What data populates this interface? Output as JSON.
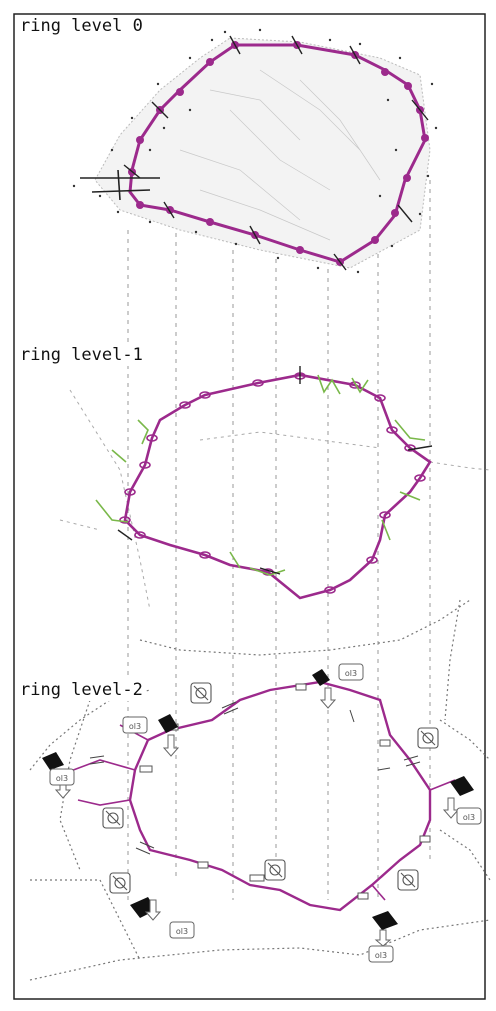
{
  "labels": {
    "level0": "ring level 0",
    "level1": "ring level-1",
    "level2": "ring level-2"
  },
  "tag_text": "ol3",
  "colors": {
    "ring": "#9c2a8c",
    "green_sketch": "#7ab84a",
    "sketch": "#333333",
    "background": "#ffffff"
  },
  "icon_names": [
    "crossed-box-icon",
    "entrance-arrow-icon",
    "black-diamond-marker"
  ]
}
